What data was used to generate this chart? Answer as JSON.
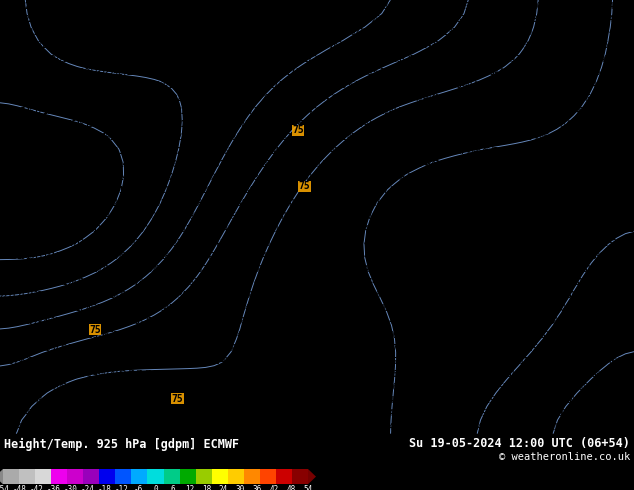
{
  "title_left": "Height/Temp. 925 hPa [gdpm] ECMWF",
  "title_right": "Su 19-05-2024 12:00 UTC (06+54)",
  "copyright": "© weatheronline.co.uk",
  "colorbar_values": [
    -54,
    -48,
    -42,
    -36,
    -30,
    -24,
    -18,
    -12,
    -6,
    0,
    6,
    12,
    18,
    24,
    30,
    36,
    42,
    48,
    54
  ],
  "colorbar_colors": [
    "#aaaaaa",
    "#c0c0c0",
    "#d8d8d8",
    "#ee00ee",
    "#cc00cc",
    "#9900bb",
    "#0000ee",
    "#0055ff",
    "#00aaff",
    "#00dddd",
    "#00cc88",
    "#00aa00",
    "#99cc00",
    "#ffff00",
    "#ffcc00",
    "#ff8800",
    "#ff4400",
    "#cc0000",
    "#880000"
  ],
  "background_color": "#ffaa00",
  "fig_width": 6.34,
  "fig_height": 4.9,
  "dpi": 100,
  "num_rows": 33,
  "num_cols": 75,
  "font_size": 5.5,
  "contour_color": "#6688bb",
  "contour_lw": 0.7
}
